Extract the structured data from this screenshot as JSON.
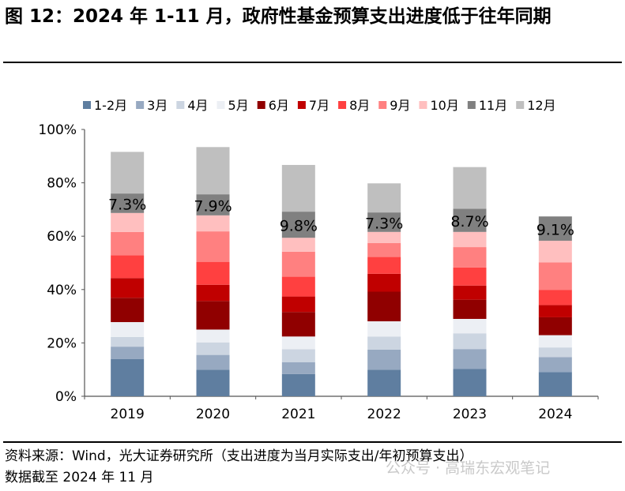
{
  "title": "图 12：2024 年 1-11 月，政府性基金预算支出进度低于往年同期",
  "source": "资料来源：Wind，光大证券研究所（支出进度为当月实际支出/年初预算支出）",
  "note": "数据截至 2024 年 11 月",
  "watermark": "公众号 · 高瑞东宏观笔记",
  "chart_data": {
    "type": "bar",
    "stacked": true,
    "categories": [
      "2019",
      "2020",
      "2021",
      "2022",
      "2023",
      "2024"
    ],
    "ylim": [
      0,
      100
    ],
    "yticks": [
      "0%",
      "20%",
      "40%",
      "60%",
      "80%",
      "100%"
    ],
    "legend_position": "top",
    "grid": false,
    "series": [
      {
        "name": "1-2月",
        "color": "#5f7ea0",
        "values": [
          14.0,
          9.9,
          8.3,
          9.9,
          10.3,
          9.1
        ]
      },
      {
        "name": "3月",
        "color": "#97a9c1",
        "values": [
          4.6,
          5.6,
          4.5,
          7.6,
          7.4,
          5.6
        ]
      },
      {
        "name": "4月",
        "color": "#ccd5e1",
        "values": [
          3.6,
          4.7,
          4.8,
          4.9,
          5.9,
          3.6
        ]
      },
      {
        "name": "5月",
        "color": "#eceff4",
        "values": [
          5.6,
          4.8,
          4.8,
          5.7,
          5.4,
          4.6
        ]
      },
      {
        "name": "6月",
        "color": "#900000",
        "values": [
          9.1,
          10.7,
          9.2,
          11.1,
          7.2,
          6.7
        ]
      },
      {
        "name": "7月",
        "color": "#c00000",
        "values": [
          7.4,
          6.1,
          5.8,
          6.7,
          5.3,
          4.6
        ]
      },
      {
        "name": "8月",
        "color": "#ff4040",
        "values": [
          8.5,
          8.6,
          7.4,
          6.3,
          6.8,
          5.7
        ]
      },
      {
        "name": "9月",
        "color": "#ff8080",
        "values": [
          8.8,
          11.4,
          9.4,
          5.2,
          7.6,
          10.3
        ]
      },
      {
        "name": "10月",
        "color": "#ffbfbf",
        "values": [
          7.1,
          6.0,
          5.2,
          4.2,
          5.7,
          8.1
        ]
      },
      {
        "name": "11月",
        "color": "#808080",
        "values": [
          7.3,
          7.9,
          9.8,
          7.3,
          8.7,
          9.1
        ],
        "labels": [
          "7.3%",
          "7.9%",
          "9.8%",
          "7.3%",
          "8.7%",
          "9.1%"
        ]
      },
      {
        "name": "12月",
        "color": "#bfbfbf",
        "values": [
          15.6,
          17.7,
          17.5,
          10.9,
          15.6,
          null
        ]
      }
    ]
  }
}
